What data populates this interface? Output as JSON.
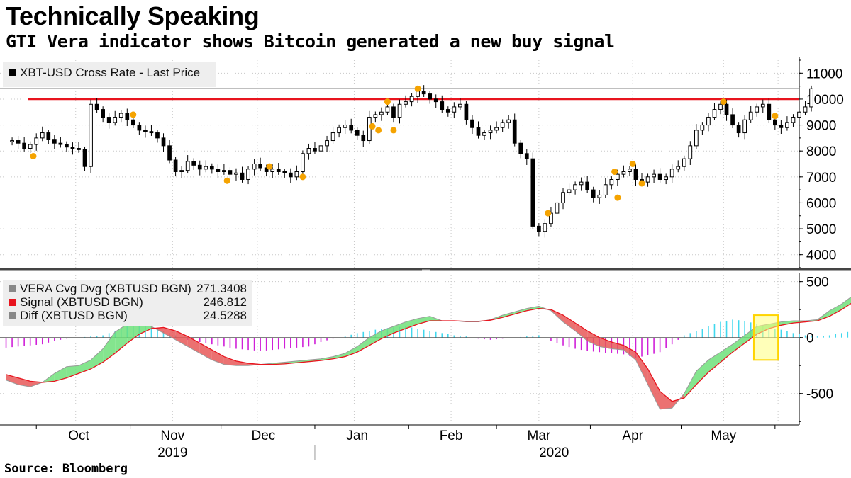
{
  "header": {
    "title": "Technically Speaking",
    "subtitle": "GTI Vera indicator shows Bitcoin generated a new buy signal"
  },
  "footer": {
    "source": "Source: Bloomberg"
  },
  "colors": {
    "resistance_line": "#e8141e",
    "buy_dot": "#f5a300",
    "hist_positive": "#40d8ee",
    "hist_negative": "#d020d8",
    "signal_line": "#e8141e",
    "fill_bull": "#6fe07a",
    "fill_bear": "#e85858",
    "highlight": "#ffff80"
  },
  "chart_data": [
    {
      "type": "candlestick",
      "legend": [
        {
          "label": "XBT-USD Cross Rate - Last Price",
          "color": "#000000"
        }
      ],
      "ylim": [
        3500,
        11500
      ],
      "yticks": [
        4000,
        5000,
        6000,
        7000,
        8000,
        9000,
        10000,
        11000
      ],
      "y_tick_labels": [
        "4000",
        "5000",
        "6000",
        "7000",
        "8000",
        "9000",
        "10000",
        "11000"
      ],
      "reference_lines": [
        {
          "kind": "last_price",
          "value": 10400,
          "color": "#000000"
        },
        {
          "kind": "resistance",
          "value": 10000,
          "color": "#e8141e"
        }
      ],
      "close_series": {
        "x_start": "2019-09-23",
        "interval_days": 2,
        "values": [
          8400,
          8300,
          8100,
          8250,
          8500,
          8700,
          8450,
          8300,
          8250,
          8150,
          8100,
          8050,
          7400,
          9800,
          9600,
          9300,
          9100,
          9300,
          9450,
          9200,
          9000,
          8800,
          8750,
          8700,
          8500,
          8200,
          7650,
          7200,
          7250,
          7600,
          7450,
          7300,
          7400,
          7300,
          7200,
          7250,
          7100,
          7150,
          6900,
          7300,
          7500,
          7350,
          7200,
          7300,
          7200,
          7150,
          7000,
          7200,
          7900,
          8100,
          8000,
          8200,
          8400,
          8700,
          8900,
          9000,
          8800,
          8600,
          8400,
          9300,
          9400,
          9500,
          9700,
          9300,
          9800,
          9900,
          10100,
          10300,
          10200,
          10000,
          9900,
          9600,
          9500,
          9700,
          9800,
          9200,
          8900,
          8600,
          8700,
          8800,
          8900,
          9100,
          9200,
          8300,
          7900,
          7700,
          5100,
          4900,
          5200,
          5600,
          6000,
          6400,
          6500,
          6700,
          6800,
          6500,
          6200,
          6300,
          6700,
          6900,
          7100,
          7200,
          7300,
          6900,
          6800,
          7000,
          7100,
          6900,
          7000,
          7300,
          7400,
          7700,
          8200,
          8800,
          9000,
          9300,
          9600,
          9800,
          9400,
          9000,
          8700,
          9200,
          9500,
          9700,
          9800,
          9200,
          9000,
          8900,
          9100,
          9300,
          9500,
          9700,
          10400
        ]
      },
      "buy_signals": [
        {
          "date": "2019-09-30",
          "value": 7800
        },
        {
          "date": "2019-11-02",
          "value": 9400
        },
        {
          "date": "2019-12-03",
          "value": 6850
        },
        {
          "date": "2019-12-17",
          "value": 7400
        },
        {
          "date": "2019-12-28",
          "value": 7000
        },
        {
          "date": "2020-01-20",
          "value": 8950
        },
        {
          "date": "2020-01-22",
          "value": 8800
        },
        {
          "date": "2020-01-25",
          "value": 9900
        },
        {
          "date": "2020-01-27",
          "value": 8800
        },
        {
          "date": "2020-02-04",
          "value": 10400
        },
        {
          "date": "2020-03-18",
          "value": 5600
        },
        {
          "date": "2020-04-09",
          "value": 7200
        },
        {
          "date": "2020-04-10",
          "value": 6200
        },
        {
          "date": "2020-04-15",
          "value": 7500
        },
        {
          "date": "2020-04-18",
          "value": 6750
        },
        {
          "date": "2020-05-15",
          "value": 9900
        },
        {
          "date": "2020-06-01",
          "value": 9350
        }
      ]
    },
    {
      "type": "line",
      "legend": [
        {
          "label": "VERA Cvg Dvg (XBTUSD BGN)",
          "value": "271.3408",
          "color": "#888888"
        },
        {
          "label": "Signal (XBTUSD BGN)",
          "value": "246.812",
          "color": "#e8141e"
        },
        {
          "label": "Diff (XBTUSD BGN)",
          "value": "24.5288",
          "color": "#888888"
        }
      ],
      "ylim": [
        -780,
        580
      ],
      "yticks": [
        500,
        0,
        -500
      ],
      "y_tick_labels": [
        "500",
        "0",
        "-500"
      ],
      "x_start": "2019-09-21",
      "interval_days": 4,
      "series": [
        {
          "name": "VERA Cvg Dvg (XBTUSD BGN)",
          "values": [
            -380,
            -420,
            -440,
            -400,
            -320,
            -260,
            -250,
            -200,
            -100,
            50,
            120,
            150,
            100,
            40,
            -20,
            -80,
            -140,
            -200,
            -240,
            -250,
            -250,
            -240,
            -230,
            -220,
            -210,
            -200,
            -190,
            -170,
            -140,
            -80,
            0,
            60,
            100,
            140,
            170,
            190,
            150,
            150,
            140,
            140,
            160,
            200,
            230,
            260,
            280,
            240,
            140,
            60,
            -30,
            -80,
            -100,
            -110,
            -200,
            -420,
            -640,
            -630,
            -500,
            -300,
            -200,
            -130,
            -60,
            20,
            100,
            120,
            140,
            150,
            150,
            160,
            240,
            300,
            380,
            450,
            490,
            460,
            420,
            460,
            480,
            360,
            280,
            250,
            280
          ]
        },
        {
          "name": "Signal (XBTUSD BGN)",
          "values": [
            -330,
            -360,
            -390,
            -400,
            -390,
            -360,
            -320,
            -280,
            -220,
            -140,
            -50,
            30,
            80,
            90,
            60,
            10,
            -50,
            -110,
            -170,
            -210,
            -230,
            -240,
            -240,
            -235,
            -225,
            -215,
            -205,
            -190,
            -170,
            -130,
            -70,
            -10,
            40,
            80,
            120,
            150,
            150,
            150,
            145,
            145,
            155,
            180,
            210,
            240,
            260,
            250,
            200,
            130,
            60,
            0,
            -40,
            -70,
            -130,
            -280,
            -480,
            -570,
            -540,
            -420,
            -310,
            -220,
            -130,
            -50,
            30,
            80,
            110,
            130,
            140,
            150,
            190,
            250,
            320,
            390,
            440,
            450,
            440,
            450,
            460,
            400,
            320,
            270,
            250
          ]
        },
        {
          "name": "Diff (XBTUSD BGN)",
          "values": [
            -90,
            -80,
            -70,
            -60,
            -30,
            -10,
            0,
            10,
            20,
            60,
            110,
            120,
            100,
            60,
            20,
            -20,
            -40,
            -60,
            -80,
            -100,
            -110,
            -120,
            -110,
            -100,
            -90,
            -80,
            -40,
            -10,
            10,
            40,
            60,
            80,
            90,
            100,
            80,
            60,
            40,
            20,
            10,
            -10,
            -20,
            -10,
            0,
            10,
            20,
            -30,
            -70,
            -100,
            -120,
            -130,
            -140,
            -150,
            -180,
            -160,
            -130,
            -60,
            20,
            60,
            100,
            140,
            160,
            150,
            120,
            90,
            70,
            40,
            20,
            10,
            20,
            40,
            60,
            90,
            110,
            80,
            40,
            20,
            -40,
            -80,
            -100,
            -60,
            24.5
          ]
        }
      ],
      "highlight_range": {
        "x": [
          "2020-05-25",
          "2020-06-02"
        ],
        "y": [
          -200,
          200
        ]
      }
    }
  ],
  "x_axis": {
    "months": [
      "Oct",
      "Nov",
      "Dec",
      "Jan",
      "Feb",
      "Mar",
      "Apr",
      "May"
    ],
    "years": [
      "2019",
      "2020"
    ]
  }
}
